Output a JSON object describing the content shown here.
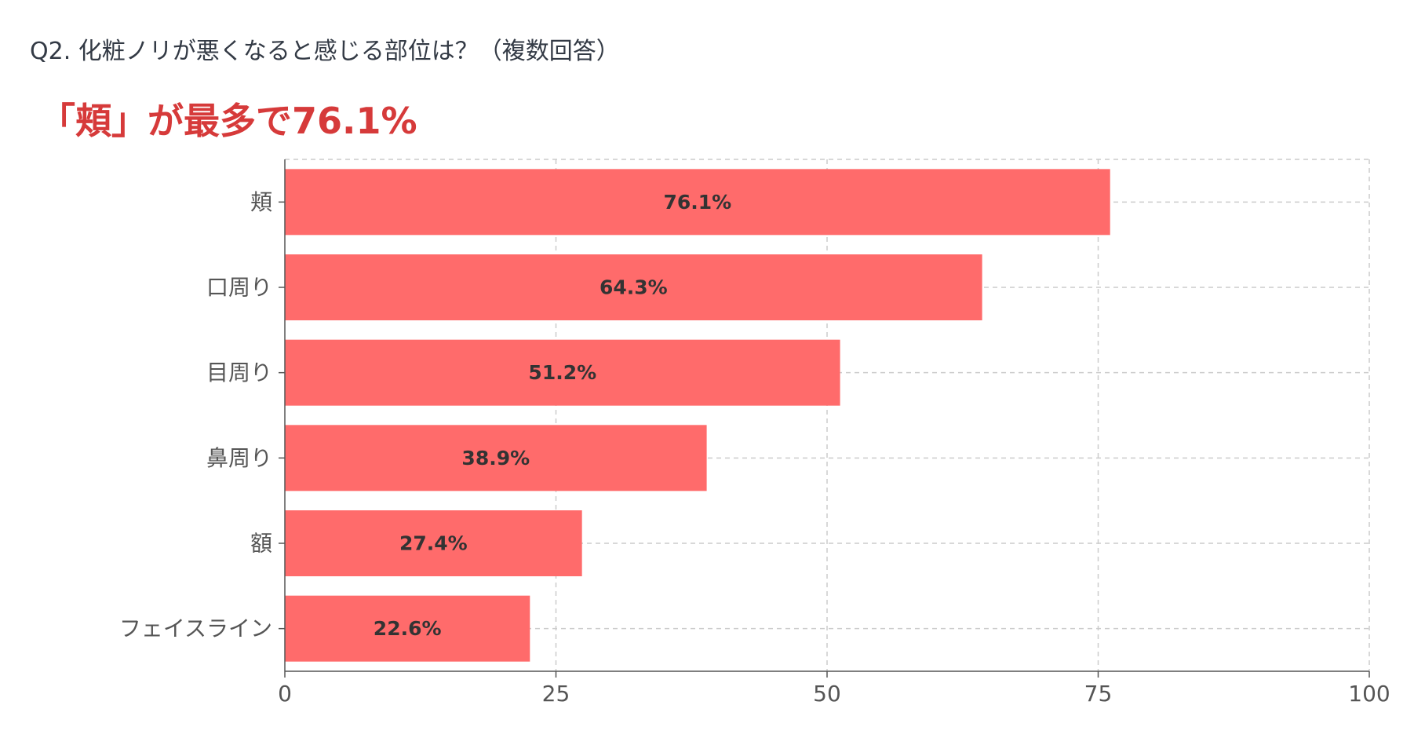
{
  "question": "Q2. 化粧ノリが悪くなると感じる部位は？（複数回答）",
  "headline": "「頬」が最多で76.1%",
  "colors": {
    "bar": "#ff6b6b",
    "headline": "#d63a3a",
    "grid": "#cccccc",
    "axis": "#555555"
  },
  "chart_data": {
    "type": "bar",
    "orientation": "horizontal",
    "categories": [
      "頬",
      "口周り",
      "目周り",
      "鼻周り",
      "額",
      "フェイスライン"
    ],
    "values": [
      76.1,
      64.3,
      51.2,
      38.9,
      27.4,
      22.6
    ],
    "value_labels": [
      "76.1%",
      "64.3%",
      "51.2%",
      "38.9%",
      "27.4%",
      "22.6%"
    ],
    "xlim": [
      0,
      100
    ],
    "xticks": [
      0,
      25,
      50,
      75,
      100
    ],
    "grid": true
  }
}
